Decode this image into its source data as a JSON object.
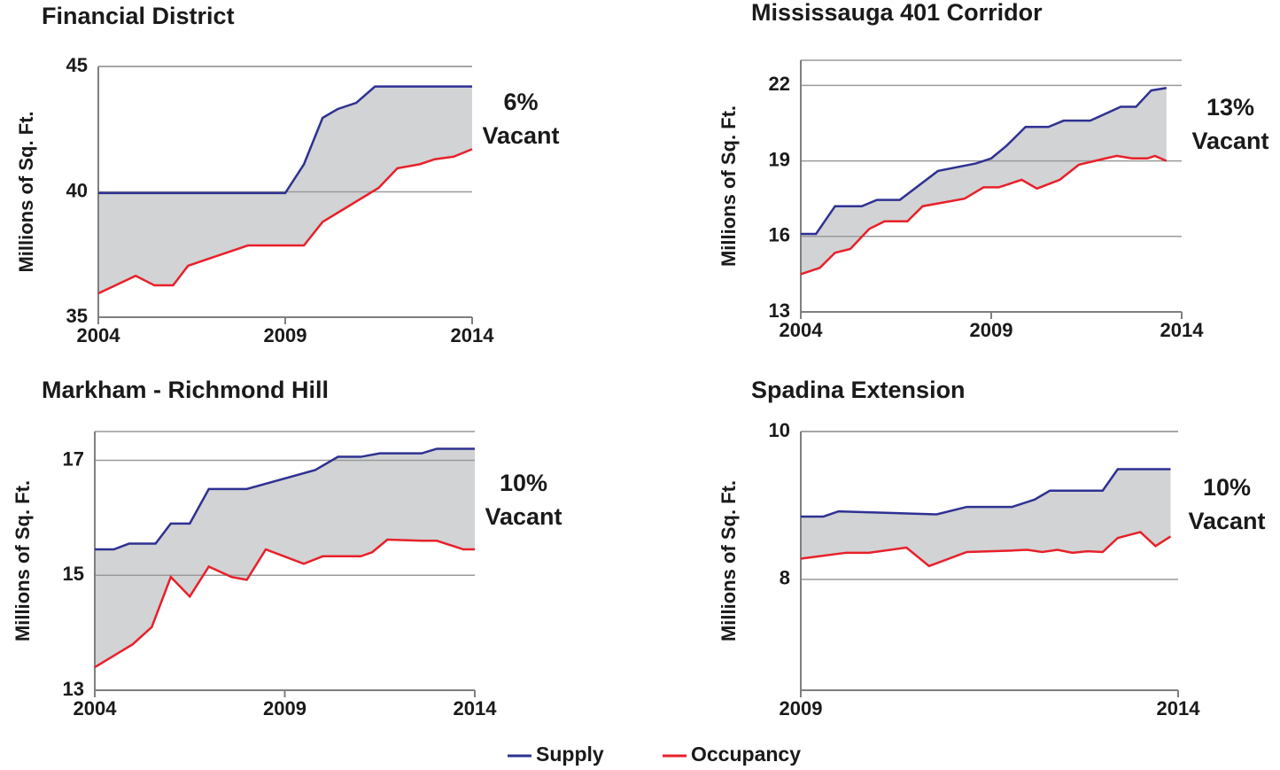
{
  "chart_data": [
    {
      "type": "line",
      "title": "Financial District",
      "ylabel": "Millions of Sq. Ft.",
      "annotation": [
        "6%",
        "Vacant"
      ],
      "xlim": [
        2004,
        2014
      ],
      "xticks": [
        2004,
        2009,
        2014
      ],
      "ylim": [
        35,
        45
      ],
      "yticks": [
        35,
        40,
        45
      ],
      "grid": true,
      "series": [
        {
          "name": "Supply",
          "color": "#2e3192",
          "x": [
            2004,
            2009,
            2009.5,
            2010,
            2010.4,
            2010.9,
            2011.4,
            2014
          ],
          "values": [
            39.95,
            39.95,
            41.1,
            42.95,
            43.3,
            43.55,
            44.2,
            44.2
          ]
        },
        {
          "name": "Occupancy",
          "color": "#e8202a",
          "x": [
            2004,
            2005,
            2005.5,
            2006,
            2006.4,
            2008,
            2009.5,
            2010,
            2011.5,
            2012,
            2012.6,
            2013,
            2013.5,
            2014
          ],
          "values": [
            35.95,
            36.65,
            36.27,
            36.27,
            37.05,
            37.86,
            37.86,
            38.8,
            40.16,
            40.94,
            41.1,
            41.3,
            41.4,
            41.7
          ]
        }
      ]
    },
    {
      "type": "line",
      "title": "Mississauga 401 Corridor",
      "ylabel": "Millions of Sq. Ft.",
      "annotation": [
        "13%",
        "Vacant"
      ],
      "xlim": [
        2004,
        2014
      ],
      "xticks": [
        2004,
        2009,
        2014
      ],
      "ylim": [
        13,
        23
      ],
      "yticks": [
        13,
        16,
        19,
        22
      ],
      "grid": true,
      "series": [
        {
          "name": "Supply",
          "color": "#2e3192",
          "x": [
            2004,
            2004.4,
            2004.9,
            2005.6,
            2006,
            2006.6,
            2007.6,
            2008.6,
            2009,
            2009.4,
            2009.9,
            2010.5,
            2010.9,
            2011.6,
            2012.4,
            2012.8,
            2013.2,
            2013.6
          ],
          "values": [
            16.1,
            16.1,
            17.2,
            17.2,
            17.45,
            17.45,
            18.6,
            18.9,
            19.1,
            19.6,
            20.35,
            20.35,
            20.6,
            20.6,
            21.15,
            21.15,
            21.8,
            21.9
          ]
        },
        {
          "name": "Occupancy",
          "color": "#e8202a",
          "x": [
            2004,
            2004.5,
            2004.9,
            2005.3,
            2005.8,
            2006.2,
            2006.8,
            2007.2,
            2008.3,
            2008.8,
            2009.2,
            2009.8,
            2010.2,
            2010.8,
            2011.3,
            2012,
            2012.3,
            2012.7,
            2013.1,
            2013.3,
            2013.6
          ],
          "values": [
            14.5,
            14.75,
            15.35,
            15.5,
            16.3,
            16.6,
            16.6,
            17.2,
            17.5,
            17.95,
            17.95,
            18.25,
            17.9,
            18.25,
            18.85,
            19.1,
            19.2,
            19.1,
            19.1,
            19.2,
            19.0
          ]
        }
      ]
    },
    {
      "type": "line",
      "title": "Markham - Richmond Hill",
      "ylabel": "Millions of Sq. Ft.",
      "annotation": [
        "10%",
        "Vacant"
      ],
      "xlim": [
        2004,
        2014
      ],
      "xticks": [
        2004,
        2009,
        2014
      ],
      "ylim": [
        13,
        17.5
      ],
      "yticks": [
        13,
        15,
        17
      ],
      "grid": true,
      "series": [
        {
          "name": "Supply",
          "color": "#2e3192",
          "x": [
            2004,
            2004.5,
            2004.9,
            2005.6,
            2006,
            2006.5,
            2007,
            2008,
            2009.8,
            2010.4,
            2011,
            2011.5,
            2012.6,
            2013,
            2014
          ],
          "values": [
            15.45,
            15.45,
            15.55,
            15.55,
            15.9,
            15.9,
            16.5,
            16.5,
            16.83,
            17.06,
            17.06,
            17.12,
            17.12,
            17.2,
            17.2
          ]
        },
        {
          "name": "Occupancy",
          "color": "#e8202a",
          "x": [
            2004,
            2005,
            2005.5,
            2006,
            2006.5,
            2007,
            2007.6,
            2008,
            2008.5,
            2009.5,
            2010,
            2011,
            2011.3,
            2011.7,
            2012.6,
            2013,
            2013.7,
            2014
          ],
          "values": [
            13.4,
            13.8,
            14.1,
            14.97,
            14.63,
            15.15,
            14.97,
            14.92,
            15.45,
            15.2,
            15.33,
            15.33,
            15.4,
            15.62,
            15.6,
            15.6,
            15.45,
            15.45
          ]
        }
      ]
    },
    {
      "type": "line",
      "title": "Spadina Extension",
      "ylabel": "Millions of Sq. Ft.",
      "annotation": [
        "10%",
        "Vacant"
      ],
      "xlim": [
        2009,
        2014
      ],
      "xticks": [
        2009,
        2014
      ],
      "ylim": [
        6.5,
        10
      ],
      "yticks": [
        8,
        10
      ],
      "grid": true,
      "series": [
        {
          "name": "Supply",
          "color": "#2e3192",
          "x": [
            2009,
            2009.3,
            2009.5,
            2010.8,
            2011.2,
            2011.8,
            2012.1,
            2012.3,
            2013,
            2013.2,
            2013.9
          ],
          "values": [
            8.85,
            8.85,
            8.92,
            8.88,
            8.98,
            8.98,
            9.08,
            9.2,
            9.2,
            9.49,
            9.49
          ]
        },
        {
          "name": "Occupancy",
          "color": "#e8202a",
          "x": [
            2009,
            2009.6,
            2009.9,
            2010.4,
            2010.7,
            2011.2,
            2011.8,
            2012,
            2012.2,
            2012.4,
            2012.6,
            2012.8,
            2013,
            2013.2,
            2013.5,
            2013.7,
            2013.9
          ],
          "values": [
            8.28,
            8.36,
            8.36,
            8.43,
            8.18,
            8.37,
            8.39,
            8.4,
            8.37,
            8.4,
            8.36,
            8.38,
            8.37,
            8.56,
            8.64,
            8.45,
            8.58
          ]
        }
      ]
    }
  ]
}
